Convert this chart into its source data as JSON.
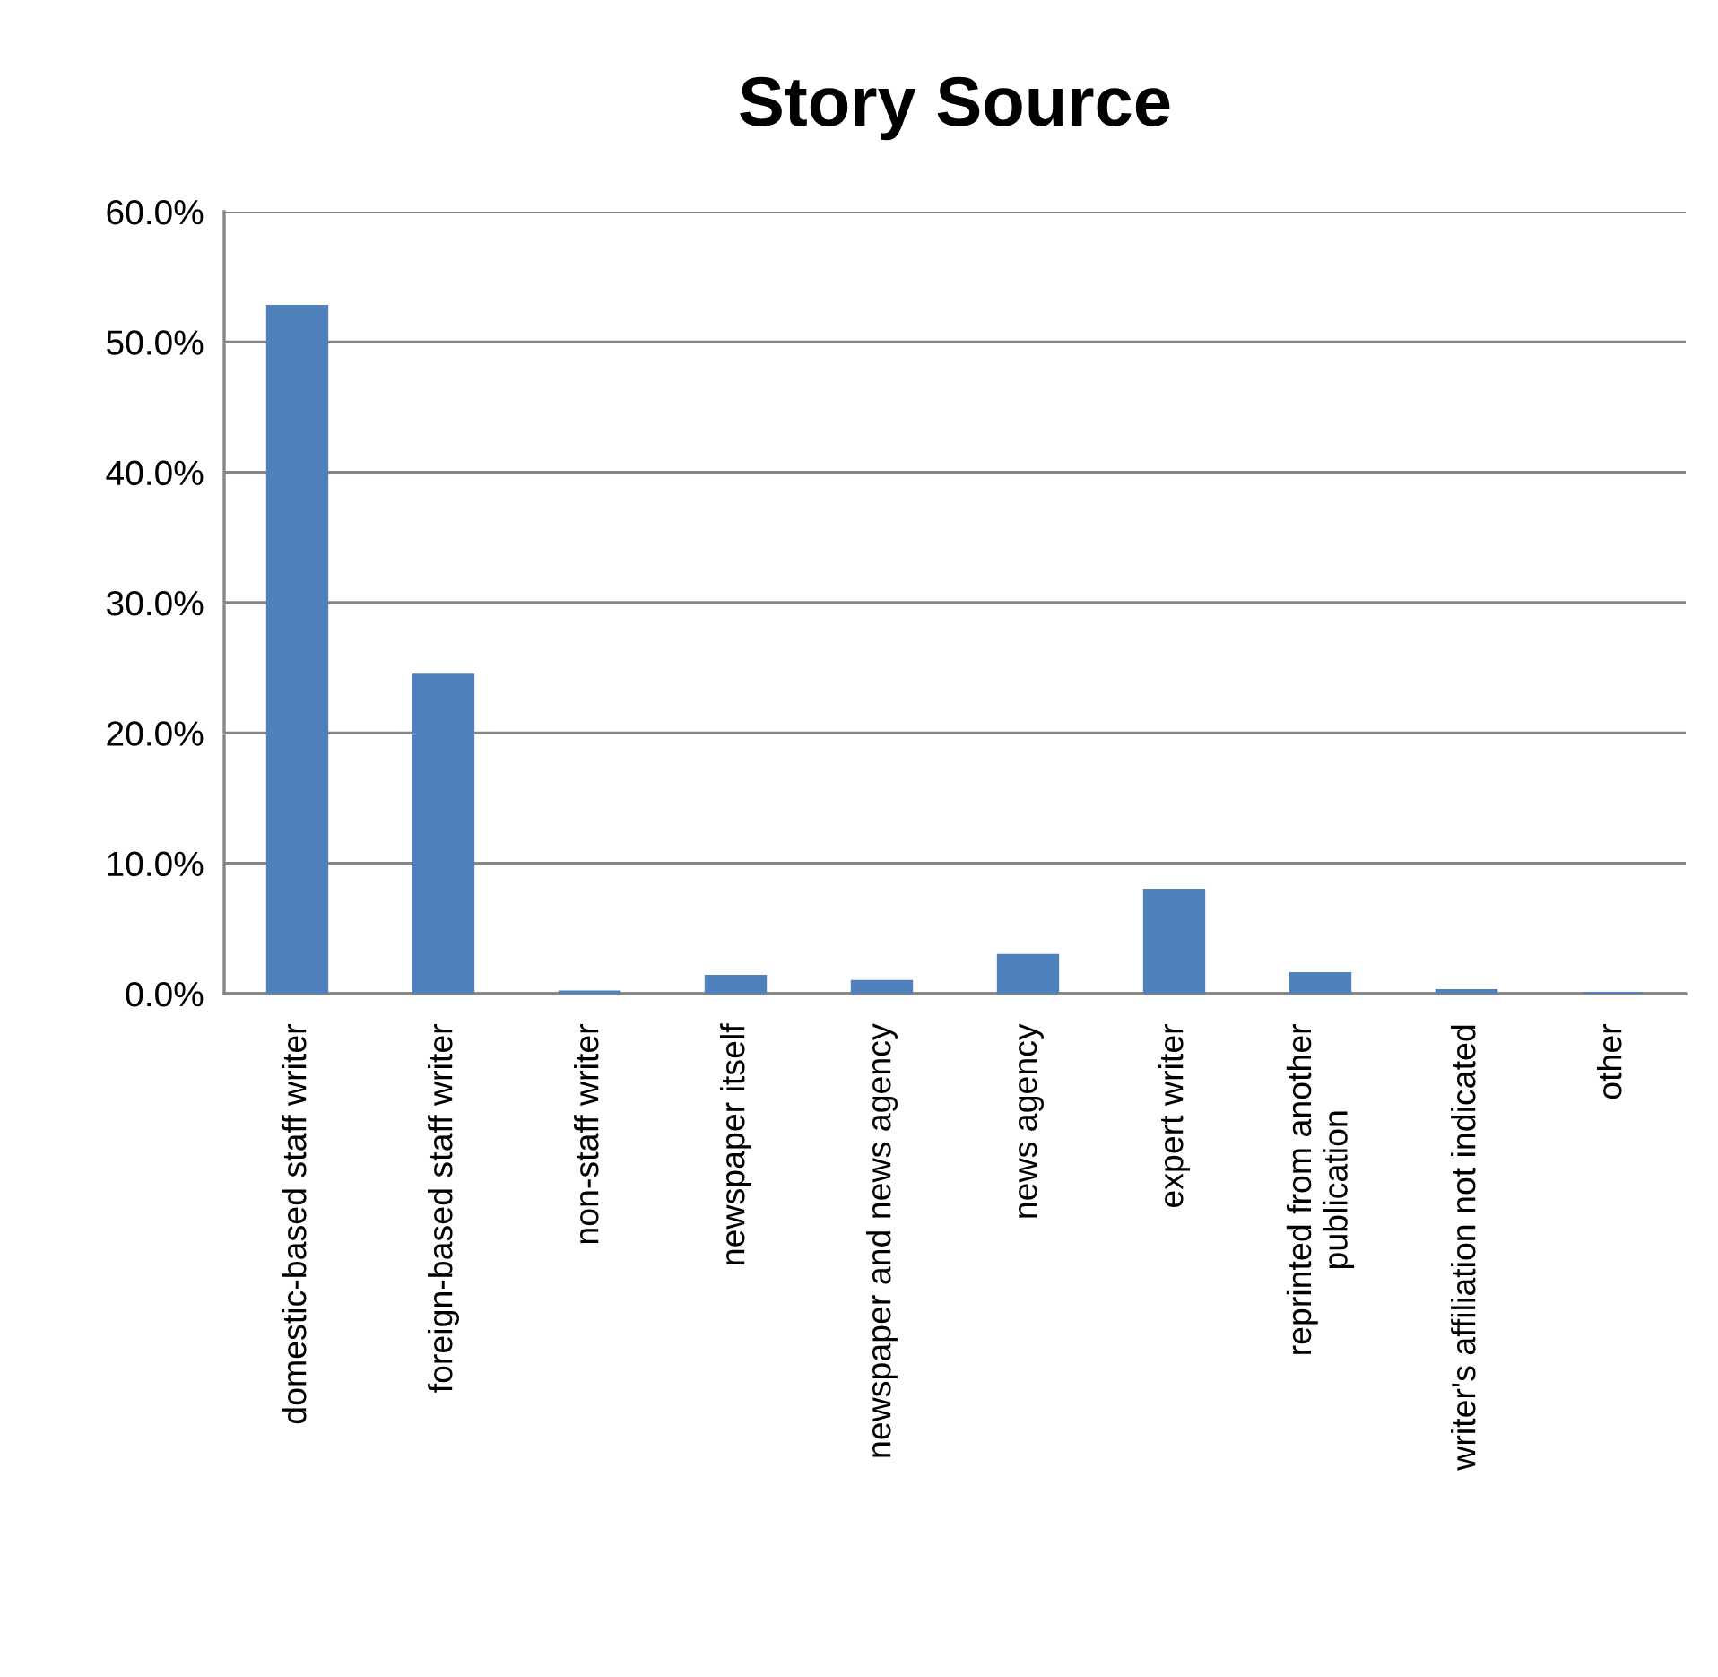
{
  "chart_data": {
    "type": "bar",
    "title": "Story Source",
    "categories": [
      "domestic-based staff writer",
      "foreign-based staff writer",
      "non-staff writer",
      "newspaper itself",
      "newspaper and news agency",
      "news agency",
      "expert writer",
      "reprinted from another\npublication",
      "writer's affiliation not indicated",
      "other"
    ],
    "values": [
      52.7,
      24.4,
      0.1,
      1.3,
      0.9,
      2.9,
      7.9,
      1.5,
      0.2,
      0
    ],
    "color": "#4f81bd",
    "ylim": [
      0,
      60
    ],
    "yticks": [
      {
        "value": 0,
        "label": "0.0%"
      },
      {
        "value": 10,
        "label": "10.0%"
      },
      {
        "value": 20,
        "label": "20.0%"
      },
      {
        "value": 30,
        "label": "30.0%"
      },
      {
        "value": 40,
        "label": "40.0%"
      },
      {
        "value": 50,
        "label": "50.0%"
      },
      {
        "value": 60,
        "label": "60.0%"
      }
    ],
    "grid": "y",
    "legend": false
  }
}
